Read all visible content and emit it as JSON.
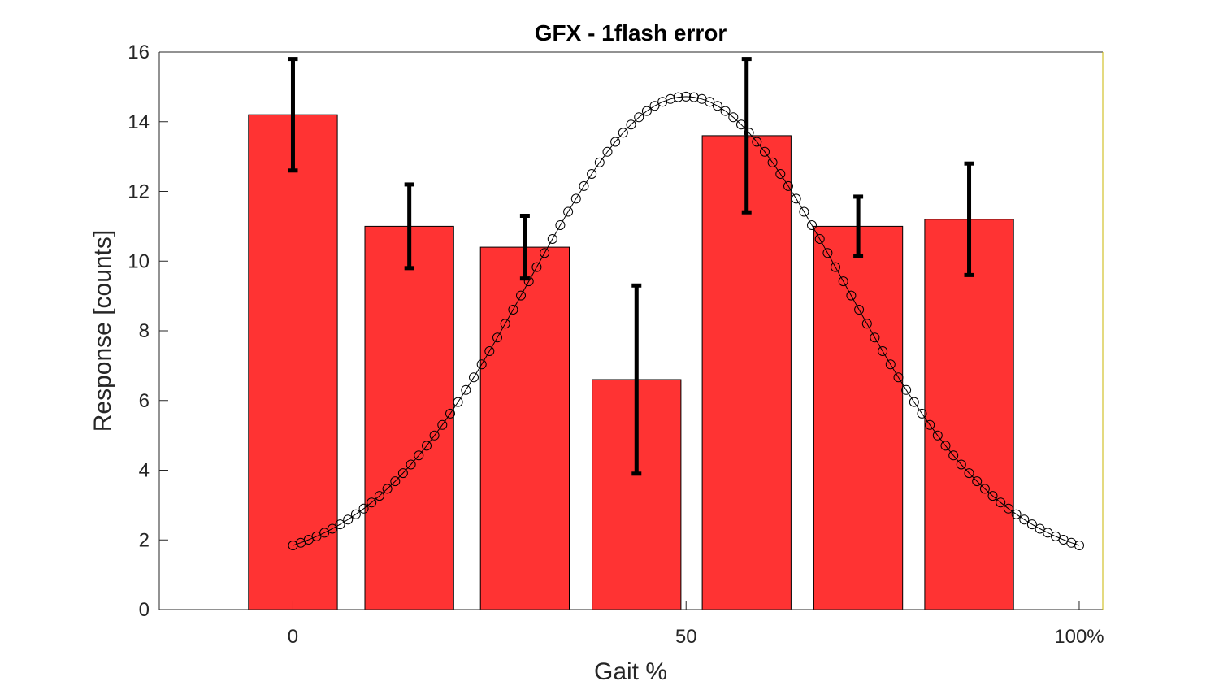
{
  "chart_data": {
    "type": "bar",
    "title": "GFX - 1flash error",
    "xlabel": "Gait %",
    "ylabel": "Response [counts]",
    "xlim": [
      -17,
      103
    ],
    "ylim": [
      0,
      16
    ],
    "x_ticks": [
      {
        "value": 0,
        "label": "0"
      },
      {
        "value": 50,
        "label": "50"
      },
      {
        "value": 100,
        "label": "100%"
      }
    ],
    "y_ticks": [
      {
        "value": 0,
        "label": "0"
      },
      {
        "value": 2,
        "label": "2"
      },
      {
        "value": 4,
        "label": "4"
      },
      {
        "value": 6,
        "label": "6"
      },
      {
        "value": 8,
        "label": "8"
      },
      {
        "value": 10,
        "label": "10"
      },
      {
        "value": 12,
        "label": "12"
      },
      {
        "value": 14,
        "label": "14"
      },
      {
        "value": 16,
        "label": "16"
      }
    ],
    "grid": false,
    "bar_width": 11.3,
    "bars": {
      "x": [
        0,
        14.8,
        29.5,
        43.7,
        57.7,
        71.9,
        86.0
      ],
      "values": [
        14.2,
        11.0,
        10.4,
        6.6,
        13.6,
        11.0,
        11.2
      ],
      "err_low": [
        12.6,
        9.8,
        9.5,
        3.9,
        11.4,
        10.15,
        9.6
      ],
      "err_high": [
        15.8,
        12.2,
        11.3,
        9.3,
        15.8,
        11.85,
        12.8
      ],
      "color": "#ff3333"
    },
    "curve": {
      "type": "gaussian-fit",
      "x_start": 0,
      "x_end": 100,
      "n_points": 101,
      "baseline": 1.25,
      "amplitude": 13.47,
      "mean": 50,
      "sigma": 20,
      "color": "#000000"
    }
  }
}
